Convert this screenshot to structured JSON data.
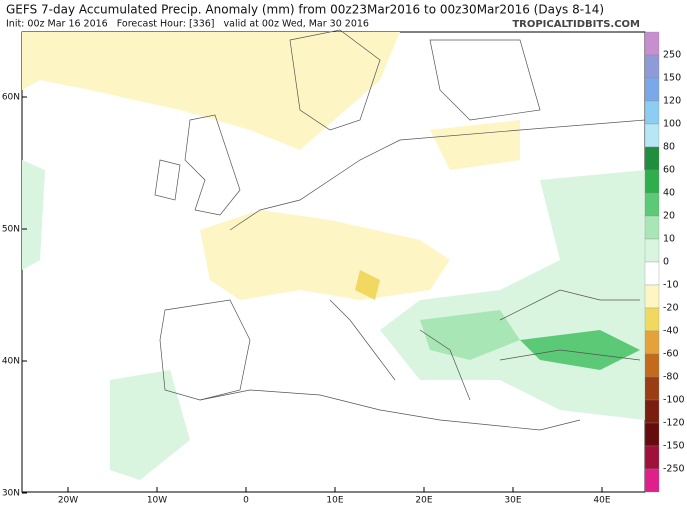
{
  "header": {
    "title": "GEFS 7-day Accumulated Precip. Anomaly (mm) from 00z23Mar2016 to 00z30Mar2016 (Days 8-14)",
    "subtitle": "Init: 00z Mar 16 2016   Forecast Hour: [336]   valid at 00z Wed, Mar 30 2016",
    "watermark": "TROPICALTIDBITS.COM"
  },
  "map": {
    "lat_labels": [
      "60N",
      "50N",
      "40N",
      "30N"
    ],
    "lon_labels": [
      "20W",
      "10W",
      "0",
      "10E",
      "20E",
      "30E",
      "40E"
    ]
  },
  "colorbar": {
    "labels": [
      250,
      150,
      120,
      100,
      80,
      60,
      40,
      20,
      10,
      0,
      -10,
      -20,
      -40,
      -60,
      -80,
      -100,
      -120,
      -150,
      -250
    ],
    "colors": [
      "#c78fd0",
      "#8f9ad8",
      "#7aa8e8",
      "#8ccdf2",
      "#b7e6f5",
      "#1f8f3e",
      "#2fae4e",
      "#5cc977",
      "#a9e6b6",
      "#d9f5df",
      "#ffffff",
      "#fdf6c4",
      "#f1d860",
      "#e6a23a",
      "#c46a1c",
      "#9a3d14",
      "#7a1f10",
      "#650c0c",
      "#a0103a",
      "#e0208a"
    ]
  }
}
